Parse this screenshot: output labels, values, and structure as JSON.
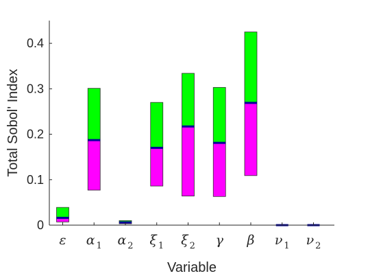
{
  "chart_data": {
    "type": "bar",
    "xlabel": "Variable",
    "ylabel": "Total Sobol' Index",
    "ylim": [
      0,
      0.45
    ],
    "yticks": [
      {
        "value": 0,
        "label": "0"
      },
      {
        "value": 0.1,
        "label": "0.1"
      },
      {
        "value": 0.2,
        "label": "0.2"
      },
      {
        "value": 0.3,
        "label": "0.3"
      },
      {
        "value": 0.4,
        "label": "0.4"
      }
    ],
    "categories": [
      {
        "symbol": "ε",
        "sub": ""
      },
      {
        "symbol": "α",
        "sub": "1"
      },
      {
        "symbol": "α",
        "sub": "2"
      },
      {
        "symbol": "ξ",
        "sub": "1"
      },
      {
        "symbol": "ξ",
        "sub": "2"
      },
      {
        "symbol": "γ",
        "sub": ""
      },
      {
        "symbol": "β",
        "sub": ""
      },
      {
        "symbol": "ν",
        "sub": "1"
      },
      {
        "symbol": "ν",
        "sub": "2"
      }
    ],
    "lower": [
      0.007,
      0.077,
      0.003,
      0.086,
      0.064,
      0.063,
      0.109,
      0.0,
      0.0
    ],
    "median": [
      0.016,
      0.187,
      0.006,
      0.17,
      0.217,
      0.181,
      0.269,
      0.0,
      0.0
    ],
    "upper": [
      0.039,
      0.301,
      0.01,
      0.27,
      0.334,
      0.303,
      0.425,
      0.0,
      0.0
    ],
    "colors": {
      "lower_segment": "#ff00ff",
      "upper_segment": "#00ff00",
      "median_line": "#000099",
      "edge": "#333333",
      "axis": "#262626"
    },
    "grid": false
  }
}
